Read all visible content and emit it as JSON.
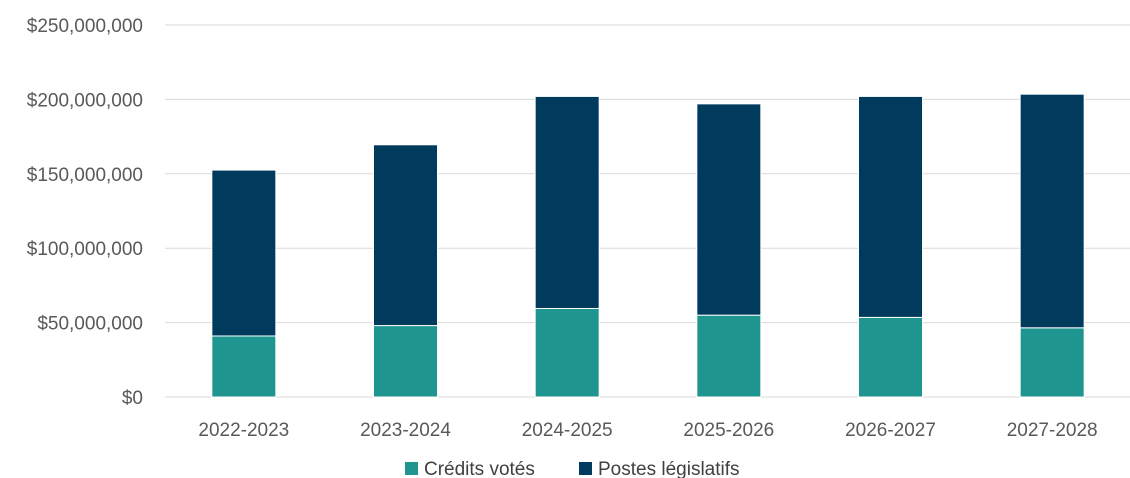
{
  "chart_data": {
    "type": "bar",
    "stacked": true,
    "categories": [
      "2022-2023",
      "2023-2024",
      "2024-2025",
      "2025-2026",
      "2026-2027",
      "2027-2028"
    ],
    "series": [
      {
        "name": "Crédits votés",
        "color": "#1f9590",
        "values": [
          41000000,
          48000000,
          59500000,
          55000000,
          53500000,
          46500000
        ]
      },
      {
        "name": "Postes législatifs",
        "color": "#003a5d",
        "values": [
          111500000,
          121500000,
          142500000,
          142000000,
          148500000,
          157000000
        ]
      }
    ],
    "ylim": [
      0,
      250000000
    ],
    "yticks": [
      "$0",
      "$50,000,000",
      "$100,000,000",
      "$150,000,000",
      "$200,000,000",
      "$250,000,000"
    ],
    "ytick_values": [
      0,
      50000000,
      100000000,
      150000000,
      200000000,
      250000000
    ],
    "grid": true,
    "legend_position": "bottom"
  }
}
